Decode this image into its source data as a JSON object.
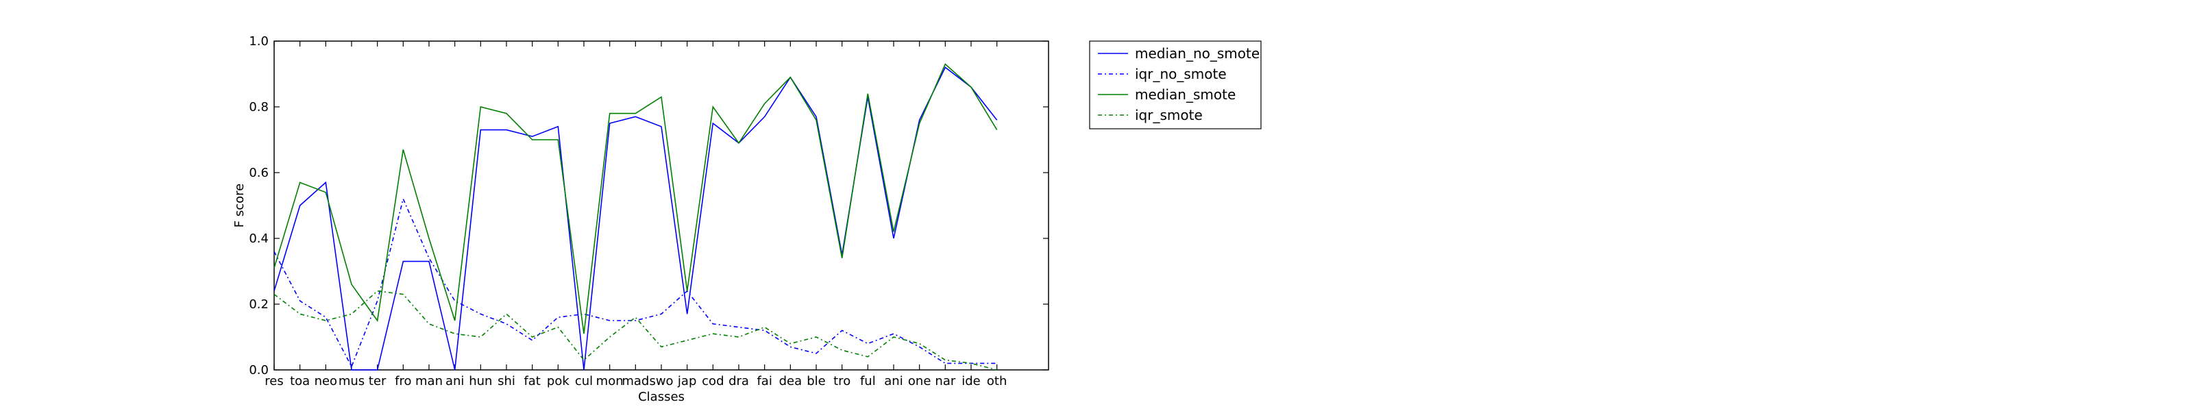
{
  "chart_data": {
    "type": "line",
    "xlabel": "Classes",
    "ylabel": "F score",
    "ylim": [
      0.0,
      1.0
    ],
    "yticks": [
      "0.0",
      "0.2",
      "0.4",
      "0.6",
      "0.8",
      "1.0"
    ],
    "grid": false,
    "legend_position": "outside-right",
    "categories": [
      "res",
      "toa",
      "neo",
      "mus",
      "ter",
      "fro",
      "man",
      "ani",
      "hun",
      "shi",
      "fat",
      "pok",
      "cul",
      "mon",
      "mad",
      "swo",
      "jap",
      "cod",
      "dra",
      "fai",
      "dea",
      "ble",
      "tro",
      "ful",
      "ani",
      "one",
      "nar",
      "ide",
      "oth"
    ],
    "series": [
      {
        "name": "median_no_smote",
        "color": "#0000ff",
        "dash": "solid",
        "values": [
          0.24,
          0.5,
          0.57,
          0.0,
          0.0,
          0.33,
          0.33,
          0.0,
          0.73,
          0.73,
          0.71,
          0.74,
          0.0,
          0.75,
          0.77,
          0.74,
          0.17,
          0.75,
          0.69,
          0.77,
          0.89,
          0.77,
          0.35,
          0.83,
          0.4,
          0.76,
          0.92,
          0.86,
          0.76
        ]
      },
      {
        "name": "iqr_no_smote",
        "color": "#0000ff",
        "dash": "dashdot",
        "values": [
          0.36,
          0.21,
          0.16,
          0.01,
          0.21,
          0.52,
          0.34,
          0.21,
          0.17,
          0.14,
          0.09,
          0.16,
          0.17,
          0.15,
          0.15,
          0.17,
          0.24,
          0.14,
          0.13,
          0.12,
          0.07,
          0.05,
          0.12,
          0.08,
          0.11,
          0.07,
          0.02,
          0.02,
          0.02
        ]
      },
      {
        "name": "median_smote",
        "color": "#008000",
        "dash": "solid",
        "values": [
          0.31,
          0.57,
          0.54,
          0.26,
          0.15,
          0.67,
          0.4,
          0.15,
          0.8,
          0.78,
          0.7,
          0.7,
          0.11,
          0.78,
          0.78,
          0.83,
          0.24,
          0.8,
          0.69,
          0.81,
          0.89,
          0.76,
          0.34,
          0.84,
          0.42,
          0.75,
          0.93,
          0.86,
          0.73
        ]
      },
      {
        "name": "iqr_smote",
        "color": "#008000",
        "dash": "dashdot",
        "values": [
          0.23,
          0.17,
          0.15,
          0.17,
          0.24,
          0.23,
          0.14,
          0.11,
          0.1,
          0.17,
          0.1,
          0.13,
          0.03,
          0.1,
          0.16,
          0.07,
          0.09,
          0.11,
          0.1,
          0.13,
          0.08,
          0.1,
          0.06,
          0.04,
          0.1,
          0.08,
          0.03,
          0.02,
          0.0
        ]
      }
    ]
  }
}
